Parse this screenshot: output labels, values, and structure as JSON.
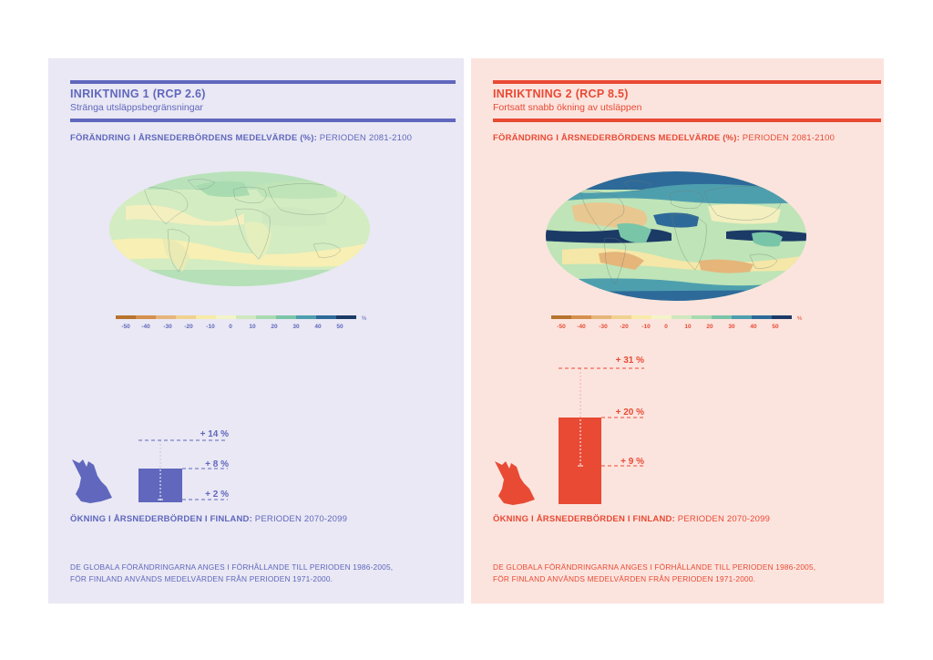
{
  "colors": {
    "low_accent": "#6067bd",
    "high_accent": "#e84a34",
    "low_bg": "#e9e8f4",
    "high_bg": "#fce4de"
  },
  "legend": {
    "ticks": [
      "-50",
      "-40",
      "-30",
      "-20",
      "-10",
      "0",
      "10",
      "20",
      "30",
      "40",
      "50"
    ],
    "unit": "%",
    "colors": [
      "#b8732e",
      "#d5904d",
      "#e5b57a",
      "#f0d28f",
      "#f8eaa8",
      "#f3f3c8",
      "#cfe8be",
      "#a8dbb0",
      "#79c5a8",
      "#4e9fae",
      "#2d6a99",
      "#1c3a66"
    ]
  },
  "panels": [
    {
      "id": "rcp26",
      "title": "INRIKTNING 1 (RCP 2.6)",
      "subtitle": "Stränga utsläppsbegränsningar",
      "map_label_bold": "FÖRÄNDRING I ÅRSNEDERBÖRDENS MEDELVÄRDE (%):",
      "map_label_period": " PERIODEN 2081-2100",
      "bar_label_bold": "ÖKNING I ÅRSNEDERBÖRDEN I FINLAND:",
      "bar_label_period": " PERIODEN 2070-2099",
      "note_line1": "DE GLOBALA FÖRÄNDRINGARNA ANGES I FÖRHÅLLANDE TILL PERIODEN 1986-2005,",
      "note_line2": "FÖR FINLAND ANVÄNDS MEDELVÄRDEN FRÅN PERIODEN 1971-2000."
    },
    {
      "id": "rcp85",
      "title": "INRIKTNING 2 (RCP 8.5)",
      "subtitle": "Fortsatt snabb ökning av utsläppen",
      "map_label_bold": "FÖRÄNDRING I ÅRSNEDERBÖRDENS MEDELVÄRDE (%):",
      "map_label_period": " PERIODEN 2081-2100",
      "bar_label_bold": "ÖKNING I ÅRSNEDERBÖRDEN I FINLAND:",
      "bar_label_period": " PERIODEN 2070-2099",
      "note_line1": "DE GLOBALA FÖRÄNDRINGARNA ANGES I FÖRHÅLLANDE TILL PERIODEN 1986-2005,",
      "note_line2": "FÖR FINLAND ANVÄNDS MEDELVÄRDEN FRÅN PERIODEN 1971-2000."
    }
  ],
  "chart_data": [
    {
      "type": "bar",
      "title": "INRIKTNING 1 (RCP 2.6)",
      "categories": [
        "Finland"
      ],
      "values": [
        8
      ],
      "range_low": 2,
      "range_high": 14,
      "labels": {
        "high": "+ 14 %",
        "mid": "+ 8 %",
        "low": "+ 2 %"
      },
      "ylim": [
        0,
        31
      ]
    },
    {
      "type": "bar",
      "title": "INRIKTNING 2 (RCP 8.5)",
      "categories": [
        "Finland"
      ],
      "values": [
        20
      ],
      "range_low": 9,
      "range_high": 31,
      "labels": {
        "high": "+ 31 %",
        "mid": "+ 20 %",
        "low": "+ 9 %"
      },
      "ylim": [
        0,
        31
      ]
    }
  ]
}
